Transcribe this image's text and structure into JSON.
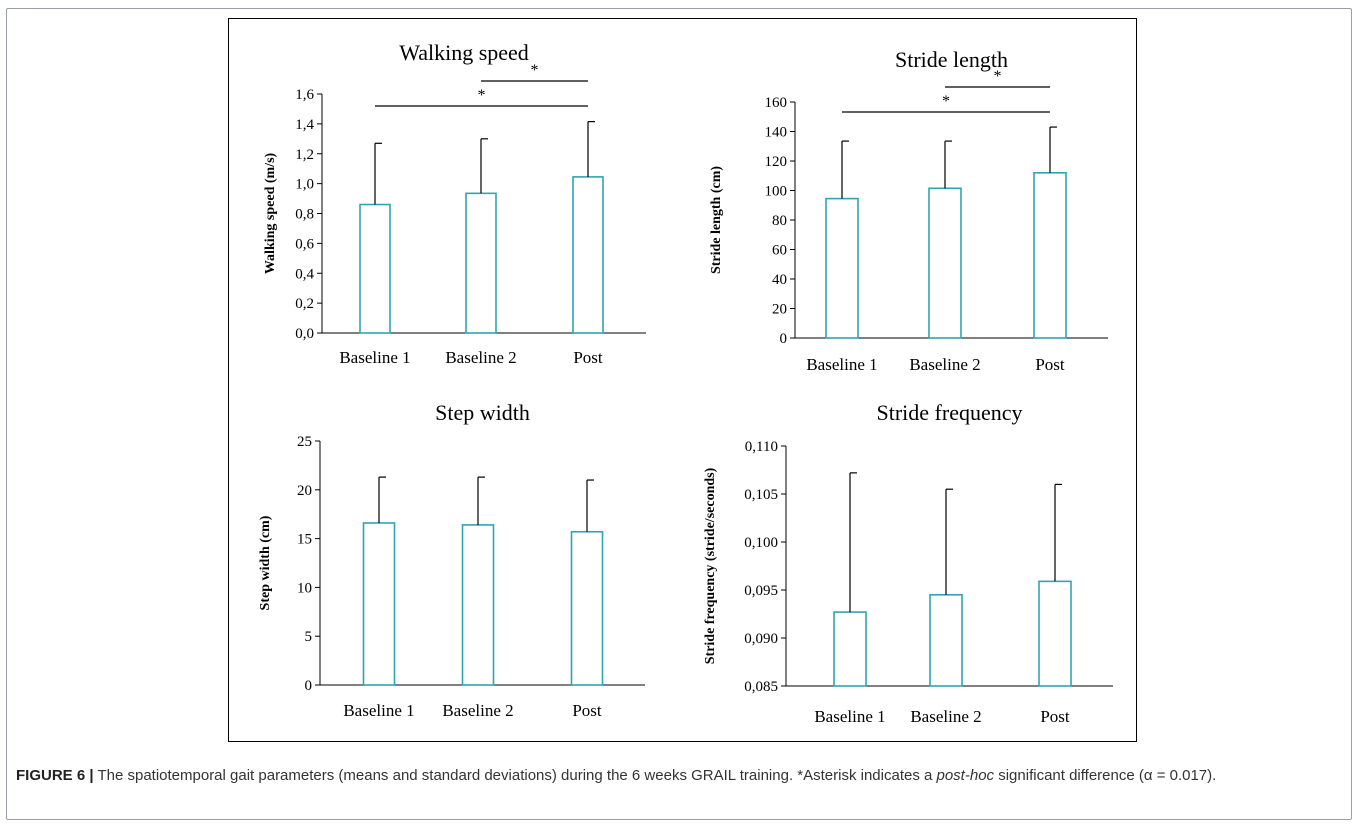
{
  "figure": {
    "label": "FIGURE 6",
    "separator": "|",
    "caption_part1": " The spatiotemporal gait parameters (means and standard deviations) during the 6 weeks GRAIL training. *Asterisk indicates a ",
    "caption_italic": "post-hoc",
    "caption_part2": " significant difference (α = 0.017)."
  },
  "colors": {
    "bar_stroke": "#31a4b1",
    "bar_fill": "#ffffff",
    "axis": "#000000"
  },
  "chart_data": [
    {
      "type": "bar",
      "title": "Walking speed",
      "ylabel": "Walking speed (m/s)",
      "categories": [
        "Baseline 1",
        "Baseline 2",
        "Post"
      ],
      "values": [
        0.86,
        0.935,
        1.045
      ],
      "errors": [
        0.41,
        0.365,
        0.37
      ],
      "ylim": [
        0,
        1.6
      ],
      "ticks": [
        "0,0",
        "0,2",
        "0,4",
        "0,6",
        "0,8",
        "1,0",
        "1,2",
        "1,4",
        "1,6"
      ],
      "significance": [
        {
          "from": "Baseline 2",
          "to": "Post",
          "label": "*"
        },
        {
          "from": "Baseline 1",
          "to": "Post",
          "label": "*"
        }
      ]
    },
    {
      "type": "bar",
      "title": "Stride length",
      "ylabel": "Stride length (cm)",
      "categories": [
        "Baseline 1",
        "Baseline 2",
        "Post"
      ],
      "values": [
        94.5,
        101.5,
        112
      ],
      "errors": [
        39,
        32,
        31
      ],
      "ylim": [
        0,
        160
      ],
      "ticks": [
        "0",
        "20",
        "40",
        "60",
        "80",
        "100",
        "120",
        "140",
        "160"
      ],
      "significance": [
        {
          "from": "Baseline 2",
          "to": "Post",
          "label": "*"
        },
        {
          "from": "Baseline 1",
          "to": "Post",
          "label": "*"
        }
      ]
    },
    {
      "type": "bar",
      "title": "Step width",
      "ylabel": "Step width (cm)",
      "categories": [
        "Baseline 1",
        "Baseline 2",
        "Post"
      ],
      "values": [
        16.6,
        16.4,
        15.7
      ],
      "errors": [
        4.7,
        4.9,
        5.3
      ],
      "ylim": [
        0,
        25
      ],
      "ticks": [
        "0",
        "5",
        "10",
        "15",
        "20",
        "25"
      ],
      "significance": []
    },
    {
      "type": "bar",
      "title": "Stride frequency",
      "ylabel": "Stride frequency (stride/seconds)",
      "categories": [
        "Baseline 1",
        "Baseline 2",
        "Post"
      ],
      "values": [
        0.0927,
        0.0945,
        0.0959
      ],
      "errors": [
        0.0145,
        0.011,
        0.0101
      ],
      "ylim": [
        0.085,
        0.11
      ],
      "ticks": [
        "0,085",
        "0,090",
        "0,095",
        "0,100",
        "0,105",
        "0,110"
      ],
      "significance": []
    }
  ]
}
